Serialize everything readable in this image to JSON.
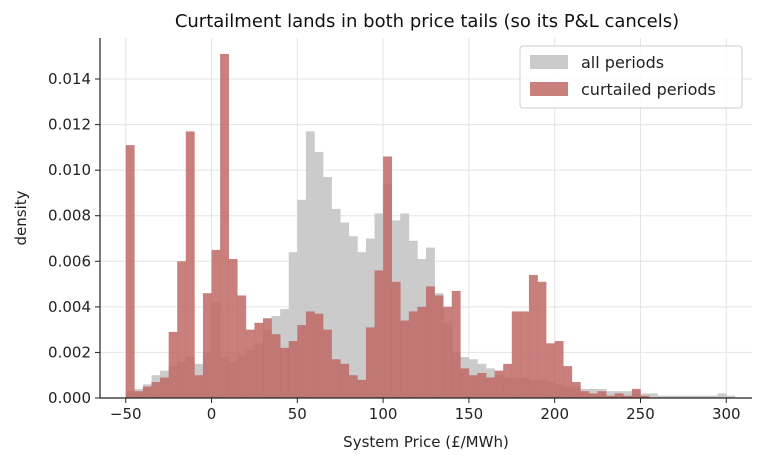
{
  "chart_data": {
    "type": "bar",
    "title": "Curtailment lands in both price tails (so its P&L cancels)",
    "xlabel": "System Price (£/MWh)",
    "ylabel": "density",
    "xlim": [
      -65,
      315
    ],
    "ylim": [
      0,
      0.0158
    ],
    "xticks": [
      -50,
      0,
      50,
      100,
      150,
      200,
      250,
      300
    ],
    "yticks": [
      0.0,
      0.002,
      0.004,
      0.006,
      0.008,
      0.01,
      0.012,
      0.014
    ],
    "xtick_labels": [
      "−50",
      "0",
      "50",
      "100",
      "150",
      "200",
      "250",
      "300"
    ],
    "ytick_labels": [
      "0.000",
      "0.002",
      "0.004",
      "0.006",
      "0.008",
      "0.010",
      "0.012",
      "0.014"
    ],
    "grid": true,
    "legend_position": "top-right",
    "bin_width": 5,
    "series": [
      {
        "name": "all periods",
        "color": "#c8c8c8",
        "bins": [
          [
            -50,
            0.0003
          ],
          [
            -45,
            0.0004
          ],
          [
            -40,
            0.0006
          ],
          [
            -35,
            0.001
          ],
          [
            -30,
            0.0012
          ],
          [
            -25,
            0.0014
          ],
          [
            -20,
            0.0016
          ],
          [
            -15,
            0.0018
          ],
          [
            -10,
            0.0015
          ],
          [
            -5,
            0.002
          ],
          [
            0,
            0.0042
          ],
          [
            5,
            0.0018
          ],
          [
            10,
            0.0016
          ],
          [
            15,
            0.0019
          ],
          [
            20,
            0.0021
          ],
          [
            25,
            0.0024
          ],
          [
            30,
            0.003
          ],
          [
            35,
            0.0036
          ],
          [
            40,
            0.0039
          ],
          [
            45,
            0.0064
          ],
          [
            50,
            0.0087
          ],
          [
            55,
            0.0117
          ],
          [
            60,
            0.0108
          ],
          [
            65,
            0.0097
          ],
          [
            70,
            0.0083
          ],
          [
            75,
            0.0077
          ],
          [
            80,
            0.0071
          ],
          [
            85,
            0.0064
          ],
          [
            90,
            0.007
          ],
          [
            95,
            0.0081
          ],
          [
            100,
            0.0094
          ],
          [
            105,
            0.0078
          ],
          [
            110,
            0.0081
          ],
          [
            115,
            0.0069
          ],
          [
            120,
            0.0061
          ],
          [
            125,
            0.0066
          ],
          [
            130,
            0.0046
          ],
          [
            135,
            0.0033
          ],
          [
            140,
            0.002
          ],
          [
            145,
            0.0018
          ],
          [
            150,
            0.0017
          ],
          [
            155,
            0.0015
          ],
          [
            160,
            0.0013
          ],
          [
            165,
            0.001
          ],
          [
            170,
            0.0009
          ],
          [
            175,
            0.0009
          ],
          [
            180,
            0.0009
          ],
          [
            185,
            0.0008
          ],
          [
            190,
            0.0008
          ],
          [
            195,
            0.0007
          ],
          [
            200,
            0.0006
          ],
          [
            205,
            0.0005
          ],
          [
            210,
            0.0005
          ],
          [
            215,
            0.0004
          ],
          [
            220,
            0.0004
          ],
          [
            225,
            0.0004
          ],
          [
            230,
            0.0003
          ],
          [
            235,
            0.0003
          ],
          [
            240,
            0.0003
          ],
          [
            245,
            0.0003
          ],
          [
            250,
            0.0002
          ],
          [
            255,
            0.0002
          ],
          [
            260,
            0.0001
          ],
          [
            265,
            0.0001
          ],
          [
            270,
            0.0001
          ],
          [
            275,
            0.0001
          ],
          [
            280,
            0.0001
          ],
          [
            285,
            0.0001
          ],
          [
            290,
            0.0001
          ],
          [
            295,
            0.0002
          ],
          [
            300,
            0.0001
          ]
        ]
      },
      {
        "name": "curtailed periods",
        "color": "#c06a66",
        "bins": [
          [
            -50,
            0.0111
          ],
          [
            -45,
            0.0003
          ],
          [
            -40,
            0.0005
          ],
          [
            -35,
            0.0007
          ],
          [
            -30,
            0.0009
          ],
          [
            -25,
            0.0029
          ],
          [
            -20,
            0.006
          ],
          [
            -15,
            0.0117
          ],
          [
            -10,
            0.001
          ],
          [
            -5,
            0.0046
          ],
          [
            0,
            0.0065
          ],
          [
            5,
            0.0151
          ],
          [
            10,
            0.0061
          ],
          [
            15,
            0.0045
          ],
          [
            20,
            0.003
          ],
          [
            25,
            0.0033
          ],
          [
            30,
            0.0035
          ],
          [
            35,
            0.0028
          ],
          [
            40,
            0.0022
          ],
          [
            45,
            0.0025
          ],
          [
            50,
            0.0032
          ],
          [
            55,
            0.0038
          ],
          [
            60,
            0.0037
          ],
          [
            65,
            0.003
          ],
          [
            70,
            0.0017
          ],
          [
            75,
            0.0015
          ],
          [
            80,
            0.001
          ],
          [
            85,
            0.0008
          ],
          [
            90,
            0.0031
          ],
          [
            95,
            0.0056
          ],
          [
            100,
            0.0106
          ],
          [
            105,
            0.0051
          ],
          [
            110,
            0.0034
          ],
          [
            115,
            0.0038
          ],
          [
            120,
            0.004
          ],
          [
            125,
            0.0049
          ],
          [
            130,
            0.0045
          ],
          [
            135,
            0.004
          ],
          [
            140,
            0.0047
          ],
          [
            145,
            0.0013
          ],
          [
            150,
            0.001
          ],
          [
            155,
            0.0011
          ],
          [
            160,
            0.0009
          ],
          [
            165,
            0.0012
          ],
          [
            170,
            0.0015
          ],
          [
            175,
            0.0038
          ],
          [
            180,
            0.0038
          ],
          [
            185,
            0.0054
          ],
          [
            190,
            0.0051
          ],
          [
            195,
            0.0024
          ],
          [
            200,
            0.0025
          ],
          [
            205,
            0.0014
          ],
          [
            210,
            0.0007
          ],
          [
            215,
            0.0003
          ],
          [
            220,
            0.0002
          ],
          [
            225,
            0.0003
          ],
          [
            230,
            0.0001
          ],
          [
            235,
            0.0002
          ],
          [
            240,
            0.0001
          ],
          [
            245,
            0.0004
          ],
          [
            250,
            0.0001
          ]
        ]
      }
    ]
  }
}
